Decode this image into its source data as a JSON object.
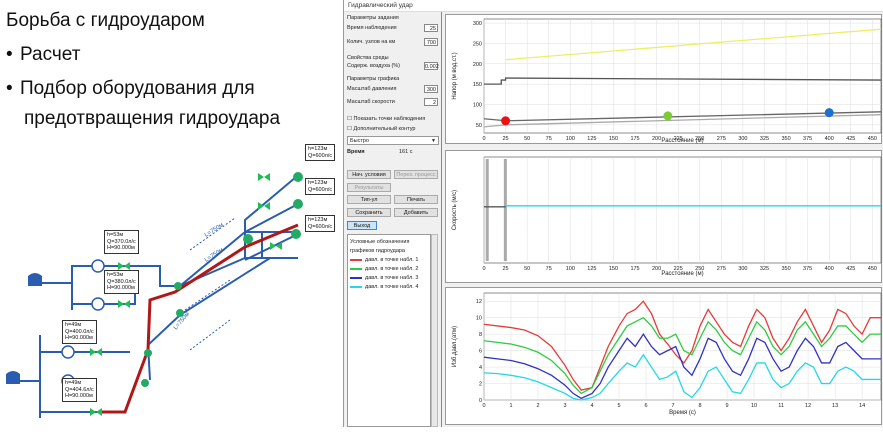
{
  "slide": {
    "title": "Борьба с гидроударом",
    "bullets": [
      "Расчет",
      "Подбор оборудования для",
      "предотвращения гидроудара"
    ]
  },
  "scheme": {
    "labels": [
      {
        "text": "h=123м\nQ=600л/с"
      },
      {
        "text": "h=123м\nQ=600л/с"
      },
      {
        "text": "h=123м\nQ=600л/с"
      },
      {
        "text": "h=53м\nQ=370.0л/с\nH=90.000м"
      },
      {
        "text": "h=53м\nQ=380.0л/с\nH=90.000м"
      },
      {
        "text": "h=49м\nQ=400.0л/с\nH=90.000м"
      },
      {
        "text": "h=49м\nQ=404.6л/с\nH=90.000м"
      }
    ],
    "pipe_labels": [
      "L=750м",
      "L=750м",
      "L=750м"
    ],
    "colors": {
      "pipe": "#2a5db0",
      "main": "#b01818",
      "node": "#22aa66",
      "valve": "#22bb55"
    }
  },
  "app": {
    "window_title": "Гидравлический удар",
    "panel": {
      "group1": "Параметры задания",
      "time_label": "Время наблюдения",
      "time_value": "25",
      "nodes_label": "Колич. узлов на км",
      "nodes_value": "700",
      "group2": "Свойства среды",
      "air_label": "Содерж. воздуха (%)",
      "air_value": "0.002",
      "group3": "Параметры графика",
      "pscale_label": "Масштаб давления",
      "pscale_value": "300",
      "vscale_label": "Масштаб скорости",
      "vscale_value": "2",
      "show_points": "Показать точки наблюдения",
      "extra_label": "Дополнительный контур",
      "speed_option": "Быстро",
      "time_title": "Время",
      "time_current": "161 с",
      "btn_initial": "Нач. условия",
      "btn_reset": "Перез. процесс",
      "btn_results": "Результаты",
      "btn_run": "Тип-ул",
      "btn_print": "Печать",
      "btn_save": "Сохранить",
      "btn_add": "Добавить",
      "btn_exit": "Выход",
      "legend_title1": "Условные обозначения",
      "legend_title2": "графиков гидроудара",
      "legend_items": [
        {
          "label": "давл. в точке набл. 1",
          "color": "#e83a3a"
        },
        {
          "label": "давл. в точке набл. 2",
          "color": "#2ecc40"
        },
        {
          "label": "давл. в точке набл. 3",
          "color": "#3030c8"
        },
        {
          "label": "давл. в точке набл. 4",
          "color": "#22d8e8"
        }
      ]
    },
    "chart1": {
      "ylabel": "Напор (м вод.ст.)",
      "xlabel": "Расстояние (м)",
      "yticks": [
        "300",
        "250",
        "200",
        "150",
        "100",
        "50"
      ],
      "xticks": [
        "0",
        "25",
        "50",
        "75",
        "100",
        "125",
        "150",
        "175",
        "200",
        "225",
        "250",
        "275",
        "300",
        "325",
        "350",
        "375",
        "400",
        "425",
        "450"
      ],
      "markers": [
        {
          "x": 25,
          "color": "#ee1111"
        },
        {
          "x": 213,
          "color": "#7acc33"
        },
        {
          "x": 400,
          "color": "#1f6fd0"
        }
      ]
    },
    "chart2": {
      "ylabel": "Скорость (м/с)",
      "xlabel": "Расстояние (м)",
      "xticks": [
        "0",
        "25",
        "50",
        "75",
        "100",
        "125",
        "150",
        "175",
        "200",
        "225",
        "250",
        "275",
        "300",
        "325",
        "350",
        "375",
        "400",
        "425",
        "450"
      ]
    },
    "chart3": {
      "ylabel": "Изб.давл.(атм)",
      "xlabel": "Время (с)",
      "yticks": [
        "12",
        "10",
        "8",
        "6",
        "4",
        "2",
        "0"
      ],
      "xticks": [
        "0",
        "1",
        "2",
        "3",
        "4",
        "5",
        "6",
        "7",
        "8",
        "9",
        "10",
        "11",
        "12",
        "13",
        "14"
      ]
    }
  },
  "chart_data": [
    {
      "type": "line",
      "xlabel": "Расстояние (м)",
      "ylabel": "Напор (м вод.ст.)",
      "xlim": [
        0,
        460
      ],
      "ylim": [
        30,
        310
      ],
      "series": [
        {
          "color": "#eeee66",
          "x": [
            25,
            460
          ],
          "y": [
            210,
            285
          ]
        },
        {
          "color": "#555555",
          "x": [
            0,
            20,
            20,
            25,
            25,
            460
          ],
          "y": [
            150,
            150,
            160,
            160,
            165,
            160
          ]
        },
        {
          "color": "#666666",
          "x": [
            0,
            25,
            460
          ],
          "y": [
            65,
            60,
            82
          ]
        },
        {
          "color": "#aaaaaa",
          "x": [
            0,
            25,
            460
          ],
          "y": [
            45,
            50,
            75
          ]
        }
      ],
      "markers": [
        {
          "x": 25,
          "y": 60
        },
        {
          "x": 213,
          "y": 72
        },
        {
          "x": 400,
          "y": 80
        }
      ]
    },
    {
      "type": "line",
      "xlabel": "Расстояние (м)",
      "ylabel": "Скорость (м/с)",
      "xlim": [
        0,
        460
      ],
      "series": [
        {
          "color": "#22d8e8",
          "x": [
            25,
            460
          ],
          "y": [
            0.05,
            0.05
          ]
        },
        {
          "color": "#555555",
          "x": [
            0,
            25
          ],
          "y": [
            0.0,
            0.0
          ]
        }
      ]
    },
    {
      "type": "line",
      "xlabel": "Время (с)",
      "ylabel": "Изб.давл.(атм)",
      "xlim": [
        0,
        14.7
      ],
      "ylim": [
        0,
        13
      ],
      "series": [
        {
          "name": "давл. в точке набл. 1",
          "color": "#e83a3a",
          "x": [
            0,
            0.5,
            1,
            1.5,
            2,
            2.5,
            3,
            3.3,
            3.6,
            4,
            4.3,
            4.6,
            5,
            5.3,
            5.6,
            5.9,
            6.2,
            6.5,
            6.8,
            7.1,
            7.4,
            7.7,
            8,
            8.3,
            8.6,
            8.9,
            9.2,
            9.5,
            9.8,
            10.1,
            10.4,
            10.7,
            11,
            11.3,
            11.6,
            11.9,
            12.2,
            12.5,
            12.8,
            13.1,
            13.4,
            13.7,
            14,
            14.3,
            14.7
          ],
          "y": [
            9.2,
            9,
            8.8,
            8.5,
            7.8,
            6.5,
            4.2,
            2.5,
            1.2,
            1.5,
            4,
            6.5,
            9,
            10.5,
            11,
            12,
            10.5,
            8,
            6.8,
            5.5,
            4.5,
            6,
            9,
            11,
            9.5,
            8,
            7,
            6.5,
            9,
            11,
            10,
            7.5,
            6,
            7.5,
            9.5,
            11,
            9,
            7,
            8.5,
            11,
            10.5,
            9,
            8,
            10,
            10
          ]
        },
        {
          "name": "давл. в точке набл. 2",
          "color": "#2ecc40",
          "x": [
            0,
            0.5,
            1,
            1.5,
            2,
            2.5,
            3,
            3.3,
            3.6,
            4,
            4.3,
            4.6,
            5,
            5.3,
            5.6,
            5.9,
            6.2,
            6.5,
            6.8,
            7.1,
            7.4,
            7.7,
            8,
            8.3,
            8.6,
            8.9,
            9.2,
            9.5,
            9.8,
            10.1,
            10.4,
            10.7,
            11,
            11.3,
            11.6,
            11.9,
            12.2,
            12.5,
            12.8,
            13.1,
            13.4,
            13.7,
            14,
            14.3,
            14.7
          ],
          "y": [
            7.2,
            7,
            6.8,
            6.4,
            5.8,
            4.8,
            3.2,
            1.8,
            0.8,
            1.5,
            3.5,
            5.5,
            7.5,
            9,
            9.5,
            10,
            9,
            7.5,
            7.5,
            8,
            6,
            5.5,
            7.5,
            9.5,
            8.5,
            7,
            6,
            5.5,
            7.5,
            9.5,
            8.5,
            6.5,
            5.5,
            6.5,
            8.5,
            9.5,
            8,
            6.5,
            7.5,
            9,
            9,
            8,
            7,
            8,
            8
          ]
        },
        {
          "name": "давл. в точке набл. 3",
          "color": "#3030c8",
          "x": [
            0,
            0.5,
            1,
            1.5,
            2,
            2.5,
            3,
            3.3,
            3.6,
            4,
            4.3,
            4.6,
            5,
            5.3,
            5.6,
            5.9,
            6.2,
            6.5,
            6.8,
            7.1,
            7.4,
            7.7,
            8,
            8.3,
            8.6,
            8.9,
            9.2,
            9.5,
            9.8,
            10.1,
            10.4,
            10.7,
            11,
            11.3,
            11.6,
            11.9,
            12.2,
            12.5,
            12.8,
            13.1,
            13.4,
            13.7,
            14,
            14.3,
            14.7
          ],
          "y": [
            5.2,
            5,
            4.8,
            4.4,
            3.8,
            3,
            1.8,
            0.8,
            0.2,
            0.8,
            2,
            4,
            6,
            7.5,
            6.5,
            8,
            6.5,
            5.5,
            6,
            6.5,
            4,
            3,
            5,
            7.5,
            7,
            5,
            3.5,
            3,
            5,
            7.5,
            7,
            5,
            3.5,
            4,
            6,
            7.5,
            6.5,
            4.5,
            4.5,
            6.5,
            7,
            6,
            5,
            5,
            5
          ]
        },
        {
          "name": "давл. в точке набл. 4",
          "color": "#22d8e8",
          "x": [
            0,
            0.5,
            1,
            1.5,
            2,
            2.5,
            3,
            3.3,
            3.6,
            4,
            4.3,
            4.6,
            5,
            5.3,
            5.6,
            5.9,
            6.2,
            6.5,
            6.8,
            7.1,
            7.4,
            7.7,
            8,
            8.3,
            8.6,
            8.9,
            9.2,
            9.5,
            9.8,
            10.1,
            10.4,
            10.7,
            11,
            11.3,
            11.6,
            11.9,
            12.2,
            12.5,
            12.8,
            13.1,
            13.4,
            13.7,
            14,
            14.3,
            14.7
          ],
          "y": [
            3.3,
            3.2,
            3,
            2.7,
            2.2,
            1.5,
            0.8,
            0.2,
            0,
            0.3,
            0.8,
            2,
            3.5,
            4.5,
            4,
            5.5,
            4,
            2.5,
            2.8,
            3.5,
            1,
            0.3,
            1.5,
            3.5,
            4,
            2.5,
            1,
            0.8,
            2.5,
            4.5,
            4.5,
            2.5,
            1.5,
            2,
            3.5,
            4.5,
            4,
            2,
            2,
            3.5,
            4,
            3.5,
            2.5,
            2.5,
            2.5
          ]
        }
      ]
    }
  ]
}
